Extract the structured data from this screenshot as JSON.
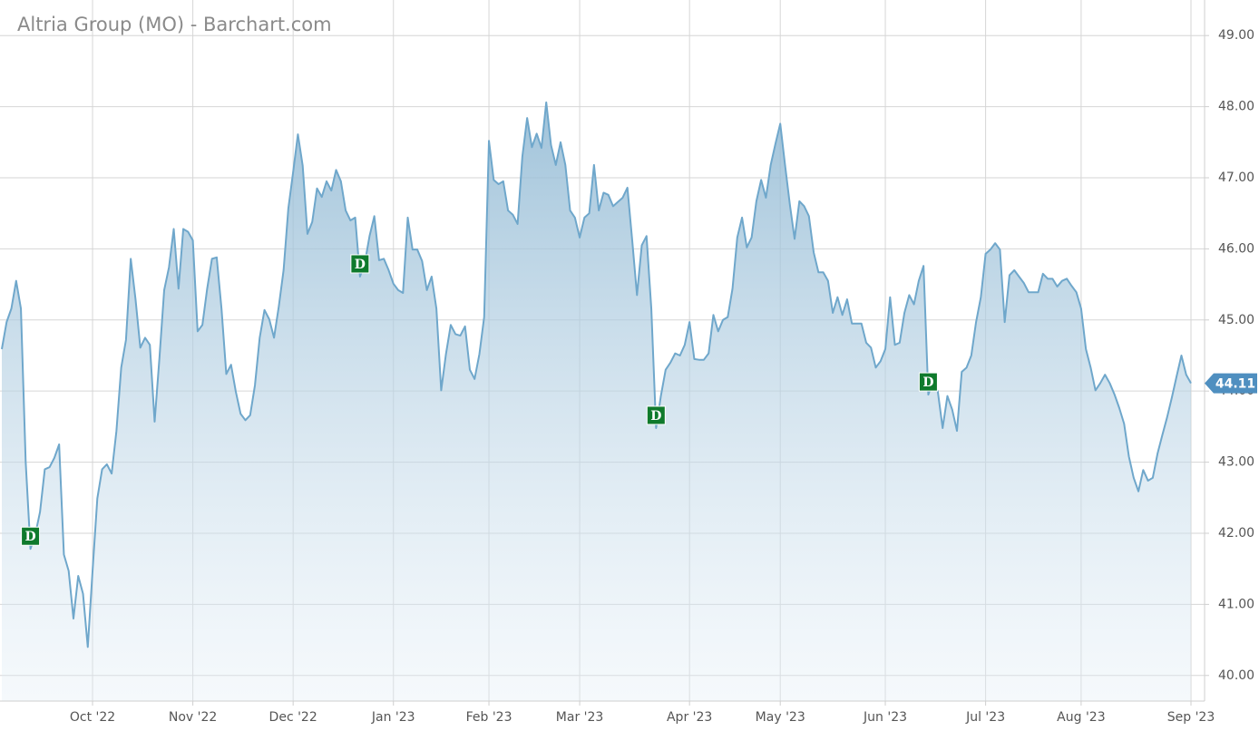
{
  "chart_data": {
    "type": "area",
    "title": "Altria Group (MO) - Barchart.com",
    "color": "#6fa7cb",
    "categories": [
      null,
      null,
      null,
      null,
      null,
      null,
      null,
      null,
      null,
      null,
      null,
      null,
      null,
      null,
      null,
      null,
      null,
      null,
      null,
      "Oct '22",
      null,
      null,
      null,
      null,
      null,
      null,
      null,
      null,
      null,
      null,
      null,
      null,
      null,
      null,
      null,
      null,
      null,
      null,
      null,
      null,
      "Nov '22",
      null,
      null,
      null,
      null,
      null,
      null,
      null,
      null,
      null,
      null,
      null,
      null,
      null,
      null,
      null,
      null,
      null,
      null,
      null,
      null,
      "Dec '22",
      null,
      null,
      null,
      null,
      null,
      null,
      null,
      null,
      null,
      null,
      null,
      null,
      null,
      null,
      null,
      null,
      null,
      null,
      null,
      null,
      "Jan '23",
      null,
      null,
      null,
      null,
      null,
      null,
      null,
      null,
      null,
      null,
      null,
      null,
      null,
      null,
      null,
      null,
      null,
      null,
      null,
      "Feb '23",
      null,
      null,
      null,
      null,
      null,
      null,
      null,
      null,
      null,
      null,
      null,
      null,
      null,
      null,
      null,
      null,
      null,
      null,
      "Mar '23",
      null,
      null,
      null,
      null,
      null,
      null,
      null,
      null,
      null,
      null,
      null,
      null,
      null,
      null,
      null,
      null,
      null,
      null,
      null,
      null,
      null,
      null,
      "Apr '23",
      null,
      null,
      null,
      null,
      null,
      null,
      null,
      null,
      null,
      null,
      null,
      null,
      null,
      null,
      null,
      null,
      null,
      null,
      "May '23",
      null,
      null,
      null,
      null,
      null,
      null,
      null,
      null,
      null,
      null,
      null,
      null,
      null,
      null,
      null,
      null,
      null,
      null,
      null,
      null,
      null,
      "Jun '23",
      null,
      null,
      null,
      null,
      null,
      null,
      null,
      null,
      null,
      null,
      null,
      null,
      null,
      null,
      null,
      null,
      null,
      null,
      null,
      null,
      "Jul '23",
      null,
      null,
      null,
      null,
      null,
      null,
      null,
      null,
      null,
      null,
      null,
      null,
      null,
      null,
      null,
      null,
      null,
      null,
      null,
      "Aug '23",
      null,
      null,
      null,
      null,
      null,
      null,
      null,
      null,
      null,
      null,
      null,
      null,
      null,
      null,
      null,
      null,
      null,
      null,
      null,
      null,
      null,
      null,
      "Sep '23"
    ],
    "values": [
      44.59,
      44.97,
      45.16,
      45.55,
      45.16,
      43.0,
      41.78,
      41.98,
      42.3,
      42.9,
      42.93,
      43.06,
      43.25,
      41.7,
      41.47,
      40.8,
      41.4,
      41.15,
      40.4,
      41.47,
      42.49,
      42.9,
      42.97,
      42.84,
      43.44,
      44.33,
      44.72,
      45.86,
      45.29,
      44.61,
      44.75,
      44.65,
      43.57,
      44.46,
      45.42,
      45.74,
      46.28,
      45.44,
      46.28,
      46.24,
      46.12,
      44.84,
      44.93,
      45.44,
      45.86,
      45.88,
      45.16,
      44.24,
      44.37,
      43.99,
      43.68,
      43.59,
      43.66,
      44.08,
      44.75,
      45.14,
      45.01,
      44.75,
      45.19,
      45.7,
      46.57,
      47.08,
      47.61,
      47.17,
      46.21,
      46.38,
      46.85,
      46.73,
      46.95,
      46.82,
      47.11,
      46.95,
      46.54,
      46.4,
      46.44,
      45.61,
      45.8,
      46.18,
      46.46,
      45.84,
      45.86,
      45.7,
      45.51,
      45.42,
      45.38,
      46.44,
      45.99,
      45.99,
      45.83,
      45.42,
      45.61,
      45.16,
      44.01,
      44.52,
      44.93,
      44.8,
      44.78,
      44.91,
      44.3,
      44.17,
      44.52,
      45.04,
      47.52,
      46.97,
      46.91,
      46.95,
      46.54,
      46.48,
      46.35,
      47.3,
      47.84,
      47.43,
      47.62,
      47.42,
      48.06,
      47.46,
      47.18,
      47.5,
      47.18,
      46.54,
      46.44,
      46.16,
      46.44,
      46.5,
      47.18,
      46.54,
      46.79,
      46.76,
      46.6,
      46.66,
      46.72,
      46.86,
      46.12,
      45.35,
      46.05,
      46.18,
      45.16,
      43.48,
      43.93,
      44.3,
      44.4,
      44.53,
      44.5,
      44.65,
      44.97,
      44.45,
      44.44,
      44.44,
      44.53,
      45.07,
      44.84,
      45.0,
      45.04,
      45.44,
      46.16,
      46.44,
      46.02,
      46.16,
      46.67,
      46.97,
      46.72,
      47.18,
      47.48,
      47.76,
      47.18,
      46.63,
      46.14,
      46.67,
      46.6,
      46.46,
      45.95,
      45.67,
      45.67,
      45.55,
      45.1,
      45.32,
      45.07,
      45.29,
      44.95,
      44.95,
      44.95,
      44.68,
      44.61,
      44.33,
      44.42,
      44.59,
      45.32,
      44.65,
      44.68,
      45.1,
      45.35,
      45.22,
      45.55,
      45.76,
      43.95,
      44.14,
      43.99,
      43.48,
      43.93,
      43.74,
      43.44,
      44.27,
      44.33,
      44.5,
      44.97,
      45.32,
      45.93,
      45.99,
      46.08,
      45.99,
      44.97,
      45.63,
      45.7,
      45.61,
      45.52,
      45.39,
      45.39,
      45.39,
      45.65,
      45.58,
      45.58,
      45.47,
      45.55,
      45.58,
      45.48,
      45.39,
      45.16,
      44.59,
      44.33,
      44.01,
      44.11,
      44.23,
      44.11,
      43.95,
      43.76,
      43.54,
      43.08,
      42.78,
      42.59,
      42.89,
      42.74,
      42.78,
      43.12,
      43.38,
      43.63,
      43.91,
      44.21,
      44.5,
      44.23,
      44.11
    ],
    "ylim": [
      39.64,
      49.5
    ],
    "yticks": [
      {
        "value": 40,
        "label": "40.00"
      },
      {
        "value": 41,
        "label": "41.00"
      },
      {
        "value": 42,
        "label": "42.00"
      },
      {
        "value": 43,
        "label": "43.00"
      },
      {
        "value": 44,
        "label": "44.00"
      },
      {
        "value": 45,
        "label": "45.00"
      },
      {
        "value": 46,
        "label": "46.00"
      },
      {
        "value": 47,
        "label": "47.00"
      },
      {
        "value": 48,
        "label": "48.00"
      },
      {
        "value": 49,
        "label": "49.00"
      }
    ],
    "grid": true,
    "dividend_markers": [
      {
        "label": "D",
        "at": 6
      },
      {
        "label": "D",
        "at": 75
      },
      {
        "label": "D",
        "at": 137
      },
      {
        "label": "D",
        "at": 194
      }
    ]
  }
}
